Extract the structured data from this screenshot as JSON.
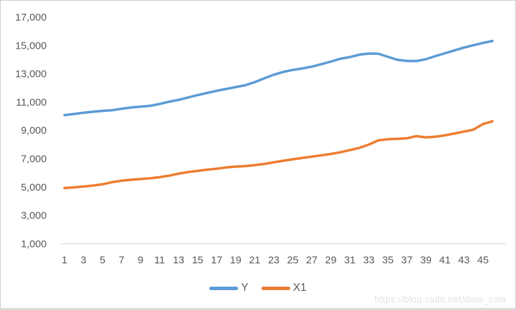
{
  "chart_data": {
    "type": "line",
    "title": "",
    "xlabel": "",
    "ylabel": "",
    "grid": false,
    "legend_position": "bottom",
    "ylim": [
      1000,
      17000
    ],
    "y_step": 2000,
    "x": [
      1,
      2,
      3,
      4,
      5,
      6,
      7,
      8,
      9,
      10,
      11,
      12,
      13,
      14,
      15,
      16,
      17,
      18,
      19,
      20,
      21,
      22,
      23,
      24,
      25,
      26,
      27,
      28,
      29,
      30,
      31,
      32,
      33,
      34,
      35,
      36,
      37,
      38,
      39,
      40,
      41,
      42,
      43,
      44,
      45,
      46
    ],
    "series": [
      {
        "name": "Y",
        "color": "#5B9BD5",
        "values": [
          10080,
          10160,
          10250,
          10320,
          10380,
          10430,
          10530,
          10620,
          10680,
          10740,
          10870,
          11030,
          11160,
          11330,
          11500,
          11650,
          11800,
          11930,
          12060,
          12190,
          12410,
          12680,
          12930,
          13130,
          13270,
          13380,
          13510,
          13680,
          13860,
          14060,
          14180,
          14350,
          14430,
          14420,
          14200,
          13990,
          13910,
          13900,
          14030,
          14250,
          14450,
          14650,
          14850,
          15020,
          15180,
          15320
        ]
      },
      {
        "name": "X1",
        "color": "#ED7D31",
        "values": [
          4930,
          4980,
          5040,
          5110,
          5200,
          5350,
          5450,
          5520,
          5570,
          5620,
          5700,
          5810,
          5950,
          6060,
          6150,
          6230,
          6300,
          6390,
          6450,
          6480,
          6550,
          6630,
          6750,
          6860,
          6960,
          7060,
          7150,
          7240,
          7340,
          7460,
          7610,
          7770,
          8000,
          8300,
          8380,
          8410,
          8450,
          8600,
          8510,
          8560,
          8650,
          8780,
          8920,
          9060,
          9450,
          9650
        ]
      }
    ],
    "x_tick_values": [
      1,
      3,
      5,
      7,
      9,
      11,
      13,
      15,
      17,
      19,
      21,
      23,
      25,
      27,
      29,
      31,
      33,
      35,
      37,
      39,
      41,
      43,
      45
    ],
    "x_tick_labels": [
      "1",
      "3",
      "5",
      "7",
      "9",
      "11",
      "13",
      "15",
      "17",
      "19",
      "21",
      "23",
      "25",
      "27",
      "29",
      "31",
      "33",
      "35",
      "37",
      "39",
      "41",
      "43",
      "45"
    ],
    "y_tick_values": [
      1000,
      3000,
      5000,
      7000,
      9000,
      11000,
      13000,
      15000,
      17000
    ],
    "y_tick_labels": [
      "1,000",
      "3,000",
      "5,000",
      "7,000",
      "9,000",
      "11,000",
      "13,000",
      "15,000",
      "17,000"
    ],
    "axis_color": "#d9d9d9",
    "tick_label_color": "#595959"
  },
  "legend": {
    "items": [
      {
        "label": "Y",
        "color": "#5B9BD5"
      },
      {
        "label": "X1",
        "color": "#ED7D31"
      }
    ]
  },
  "watermark": "https://blog.csdn.net/data_cola"
}
